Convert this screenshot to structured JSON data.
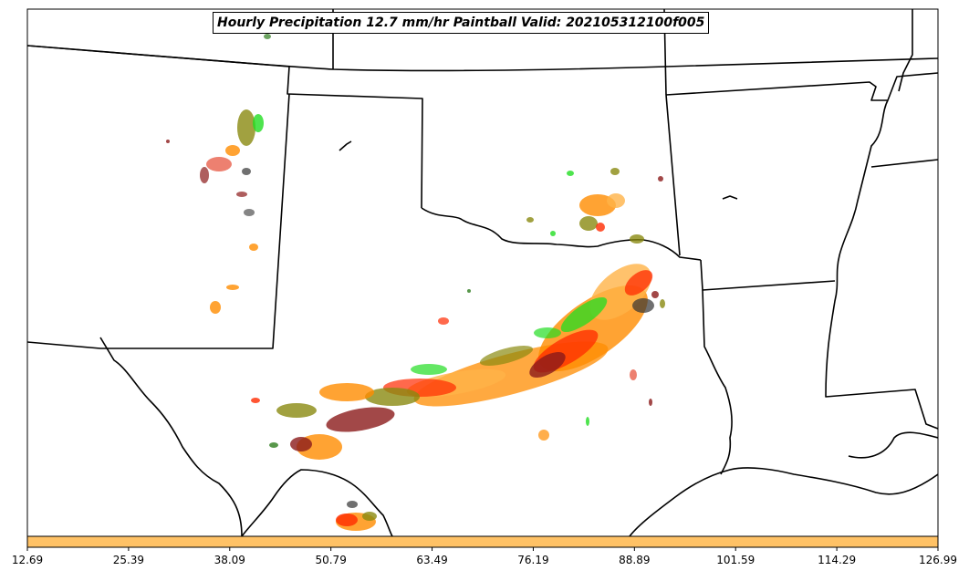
{
  "title": "Hourly Precipitation 12.7 mm/hr Paintball Valid: 202105312100f005",
  "colorbar": {
    "fill_color": "#ffc266",
    "tick_labels": [
      "12.69",
      "25.39",
      "38.09",
      "50.79",
      "63.49",
      "76.19",
      "88.89",
      "101.59",
      "114.29",
      "126.99"
    ]
  },
  "paintball_colors": {
    "dark_red": "#8b1a1a",
    "red": "#ff2a00",
    "orange": "#ff8c00",
    "light_orange": "#ffb347",
    "green": "#22dd22",
    "dark_green": "#2e7d1e",
    "olive": "#8a8a10",
    "dark_gray": "#333333",
    "salmon": "#e8604c"
  }
}
